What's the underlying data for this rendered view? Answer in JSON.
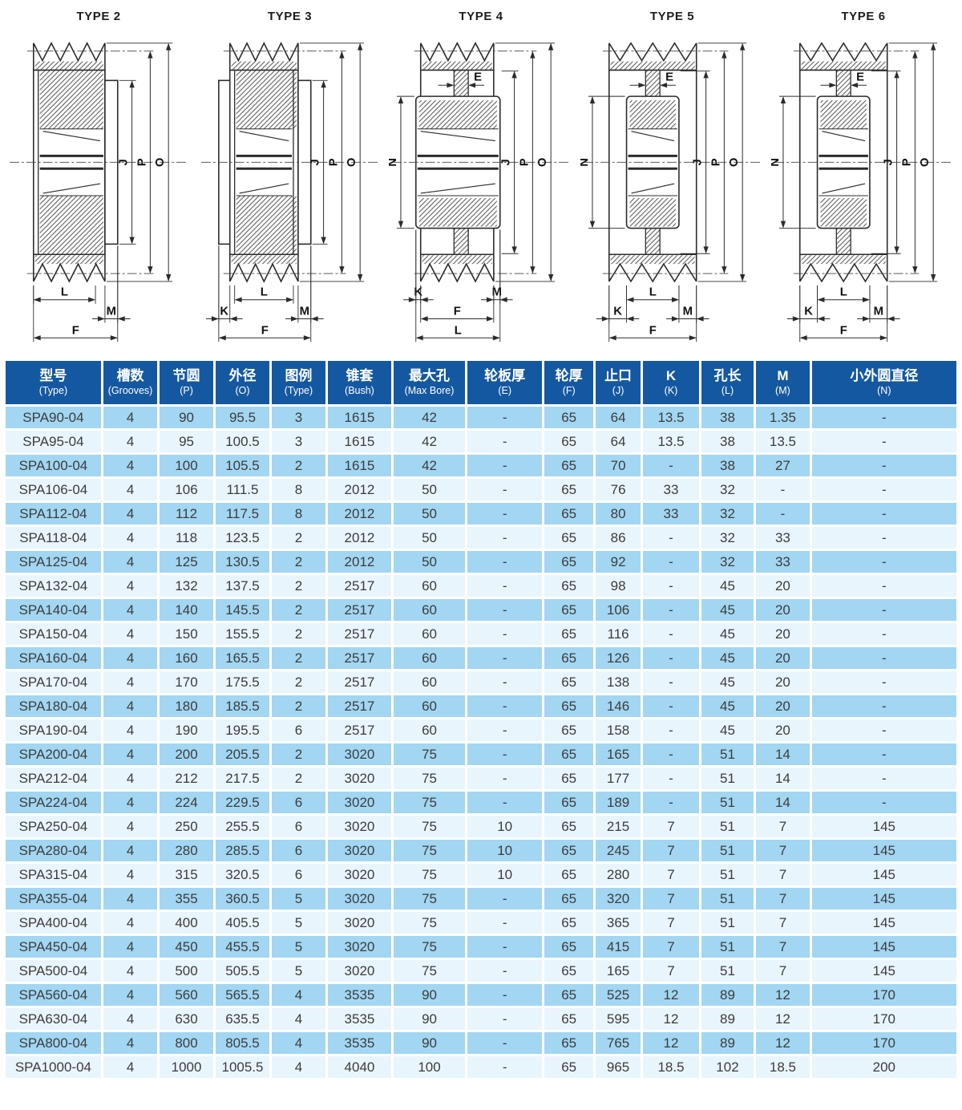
{
  "colors": {
    "header_bg": "#1558a2",
    "row_blue": "#a2d6f2",
    "row_light": "#e9f5fc",
    "body_text": "#3c3c3c",
    "line": "#2b2b2b"
  },
  "diagrams": [
    {
      "title": "TYPE 2",
      "right_dims": [
        "J",
        "P",
        "O"
      ],
      "bottom_rows": [
        [
          "L"
        ],
        [
          "M"
        ],
        [
          "F"
        ]
      ],
      "left_dim": null,
      "top_dim": null
    },
    {
      "title": "TYPE 3",
      "right_dims": [
        "J",
        "P",
        "O"
      ],
      "bottom_rows": [
        [
          "L"
        ],
        [
          "K",
          "M"
        ],
        [
          "F"
        ]
      ],
      "left_dim": null,
      "top_dim": null
    },
    {
      "title": "TYPE 4",
      "right_dims": [
        "J",
        "P",
        "O"
      ],
      "bottom_rows": [
        [
          "K",
          "M"
        ],
        [
          "F"
        ],
        [
          "L"
        ]
      ],
      "left_dim": "N",
      "top_dim": "E"
    },
    {
      "title": "TYPE 5",
      "right_dims": [
        "J",
        "P",
        "O"
      ],
      "bottom_rows": [
        [
          "L"
        ],
        [
          "K",
          "M"
        ],
        [
          "F"
        ]
      ],
      "left_dim": "N",
      "top_dim": "E"
    },
    {
      "title": "TYPE 6",
      "right_dims": [
        "J",
        "P",
        "O"
      ],
      "bottom_rows": [
        [
          "L"
        ],
        [
          "K",
          "M"
        ],
        [
          "F"
        ]
      ],
      "left_dim": "N",
      "top_dim": "E"
    }
  ],
  "table": {
    "columns": [
      {
        "cn": "型号",
        "en": "(Type)"
      },
      {
        "cn": "槽数",
        "en": "(Grooves)"
      },
      {
        "cn": "节圆",
        "en": "(P)"
      },
      {
        "cn": "外径",
        "en": "(O)"
      },
      {
        "cn": "图例",
        "en": "(Type)"
      },
      {
        "cn": "锥套",
        "en": "(Bush)"
      },
      {
        "cn": "最大孔",
        "en": "(Max Bore)"
      },
      {
        "cn": "轮板厚",
        "en": "(E)"
      },
      {
        "cn": "轮厚",
        "en": "(F)"
      },
      {
        "cn": "止口",
        "en": "(J)"
      },
      {
        "cn": "K",
        "en": "(K)"
      },
      {
        "cn": "孔长",
        "en": "(L)"
      },
      {
        "cn": "M",
        "en": "(M)"
      },
      {
        "cn": "小外圆直径",
        "en": "(N)"
      }
    ],
    "rows": [
      [
        "SPA90-04",
        "4",
        "90",
        "95.5",
        "3",
        "1615",
        "42",
        "-",
        "65",
        "64",
        "13.5",
        "38",
        "1.35",
        "-"
      ],
      [
        "SPA95-04",
        "4",
        "95",
        "100.5",
        "3",
        "1615",
        "42",
        "-",
        "65",
        "64",
        "13.5",
        "38",
        "13.5",
        "-"
      ],
      [
        "SPA100-04",
        "4",
        "100",
        "105.5",
        "2",
        "1615",
        "42",
        "-",
        "65",
        "70",
        "-",
        "38",
        "27",
        "-"
      ],
      [
        "SPA106-04",
        "4",
        "106",
        "111.5",
        "8",
        "2012",
        "50",
        "-",
        "65",
        "76",
        "33",
        "32",
        "-",
        "-"
      ],
      [
        "SPA112-04",
        "4",
        "112",
        "117.5",
        "8",
        "2012",
        "50",
        "-",
        "65",
        "80",
        "33",
        "32",
        "-",
        "-"
      ],
      [
        "SPA118-04",
        "4",
        "118",
        "123.5",
        "2",
        "2012",
        "50",
        "-",
        "65",
        "86",
        "-",
        "32",
        "33",
        "-"
      ],
      [
        "SPA125-04",
        "4",
        "125",
        "130.5",
        "2",
        "2012",
        "50",
        "-",
        "65",
        "92",
        "-",
        "32",
        "33",
        "-"
      ],
      [
        "SPA132-04",
        "4",
        "132",
        "137.5",
        "2",
        "2517",
        "60",
        "-",
        "65",
        "98",
        "-",
        "45",
        "20",
        "-"
      ],
      [
        "SPA140-04",
        "4",
        "140",
        "145.5",
        "2",
        "2517",
        "60",
        "-",
        "65",
        "106",
        "-",
        "45",
        "20",
        "-"
      ],
      [
        "SPA150-04",
        "4",
        "150",
        "155.5",
        "2",
        "2517",
        "60",
        "-",
        "65",
        "116",
        "-",
        "45",
        "20",
        "-"
      ],
      [
        "SPA160-04",
        "4",
        "160",
        "165.5",
        "2",
        "2517",
        "60",
        "-",
        "65",
        "126",
        "-",
        "45",
        "20",
        "-"
      ],
      [
        "SPA170-04",
        "4",
        "170",
        "175.5",
        "2",
        "2517",
        "60",
        "-",
        "65",
        "138",
        "-",
        "45",
        "20",
        "-"
      ],
      [
        "SPA180-04",
        "4",
        "180",
        "185.5",
        "2",
        "2517",
        "60",
        "-",
        "65",
        "146",
        "-",
        "45",
        "20",
        "-"
      ],
      [
        "SPA190-04",
        "4",
        "190",
        "195.5",
        "6",
        "2517",
        "60",
        "-",
        "65",
        "158",
        "-",
        "45",
        "20",
        "-"
      ],
      [
        "SPA200-04",
        "4",
        "200",
        "205.5",
        "2",
        "3020",
        "75",
        "-",
        "65",
        "165",
        "-",
        "51",
        "14",
        "-"
      ],
      [
        "SPA212-04",
        "4",
        "212",
        "217.5",
        "2",
        "3020",
        "75",
        "-",
        "65",
        "177",
        "-",
        "51",
        "14",
        "-"
      ],
      [
        "SPA224-04",
        "4",
        "224",
        "229.5",
        "6",
        "3020",
        "75",
        "-",
        "65",
        "189",
        "-",
        "51",
        "14",
        "-"
      ],
      [
        "SPA250-04",
        "4",
        "250",
        "255.5",
        "6",
        "3020",
        "75",
        "10",
        "65",
        "215",
        "7",
        "51",
        "7",
        "145"
      ],
      [
        "SPA280-04",
        "4",
        "280",
        "285.5",
        "6",
        "3020",
        "75",
        "10",
        "65",
        "245",
        "7",
        "51",
        "7",
        "145"
      ],
      [
        "SPA315-04",
        "4",
        "315",
        "320.5",
        "6",
        "3020",
        "75",
        "10",
        "65",
        "280",
        "7",
        "51",
        "7",
        "145"
      ],
      [
        "SPA355-04",
        "4",
        "355",
        "360.5",
        "5",
        "3020",
        "75",
        "-",
        "65",
        "320",
        "7",
        "51",
        "7",
        "145"
      ],
      [
        "SPA400-04",
        "4",
        "400",
        "405.5",
        "5",
        "3020",
        "75",
        "-",
        "65",
        "365",
        "7",
        "51",
        "7",
        "145"
      ],
      [
        "SPA450-04",
        "4",
        "450",
        "455.5",
        "5",
        "3020",
        "75",
        "-",
        "65",
        "415",
        "7",
        "51",
        "7",
        "145"
      ],
      [
        "SPA500-04",
        "4",
        "500",
        "505.5",
        "5",
        "3020",
        "75",
        "-",
        "65",
        "165",
        "7",
        "51",
        "7",
        "145"
      ],
      [
        "SPA560-04",
        "4",
        "560",
        "565.5",
        "4",
        "3535",
        "90",
        "-",
        "65",
        "525",
        "12",
        "89",
        "12",
        "170"
      ],
      [
        "SPA630-04",
        "4",
        "630",
        "635.5",
        "4",
        "3535",
        "90",
        "-",
        "65",
        "595",
        "12",
        "89",
        "12",
        "170"
      ],
      [
        "SPA800-04",
        "4",
        "800",
        "805.5",
        "4",
        "3535",
        "90",
        "-",
        "65",
        "765",
        "12",
        "89",
        "12",
        "170"
      ],
      [
        "SPA1000-04",
        "4",
        "1000",
        "1005.5",
        "4",
        "4040",
        "100",
        "-",
        "65",
        "965",
        "18.5",
        "102",
        "18.5",
        "200"
      ]
    ]
  }
}
